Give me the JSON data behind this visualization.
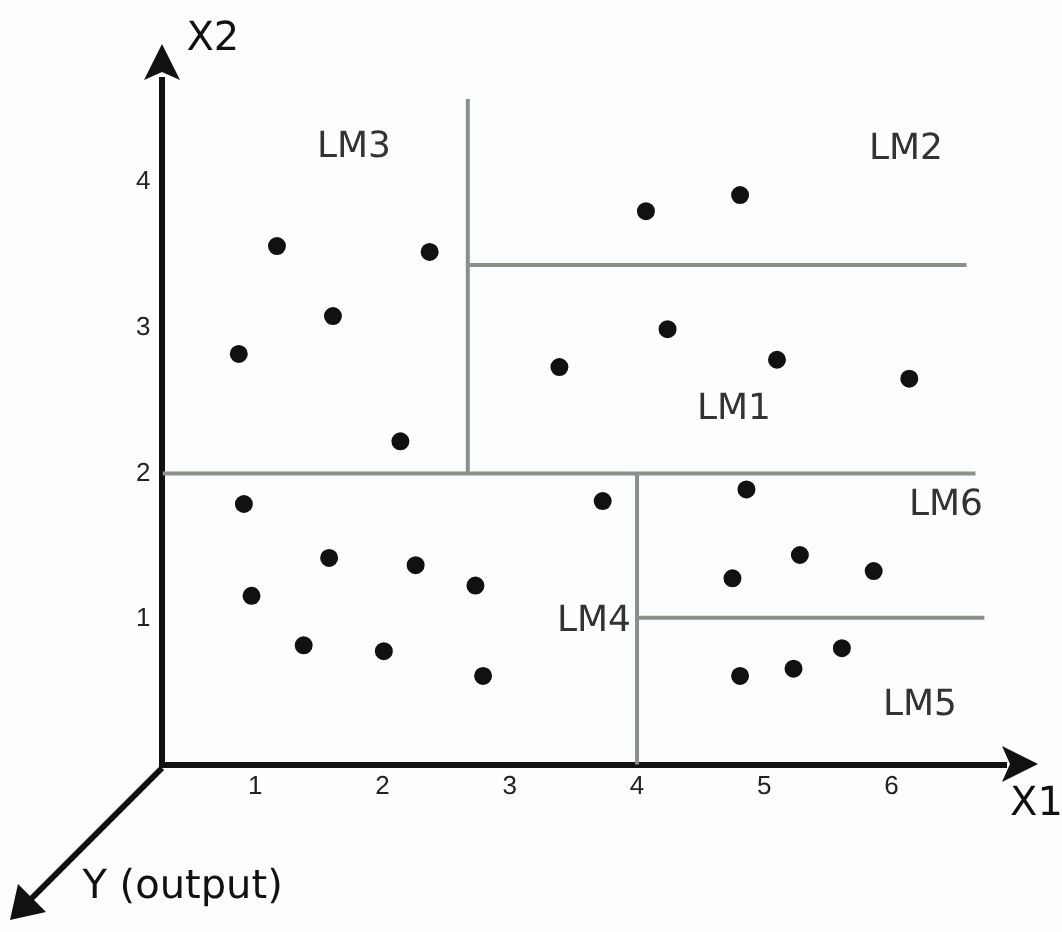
{
  "chart_data": {
    "type": "scatter",
    "xlabel": "X1",
    "ylabel": "X2",
    "xlim": [
      0.27,
      6.9
    ],
    "ylim": [
      0,
      4.7
    ],
    "xticks": [
      1,
      2,
      3,
      4,
      5,
      6
    ],
    "yticks": [
      1,
      2,
      3,
      4
    ],
    "grid": false,
    "legend": false,
    "series": [
      {
        "marker": "circle",
        "color": "#111111",
        "x": [
          1.17,
          2.37,
          1.61,
          0.87,
          2.14,
          4.07,
          4.81,
          3.39,
          4.24,
          5.1,
          6.14,
          0.91,
          3.73,
          1.58,
          2.26,
          2.73,
          0.97,
          1.38,
          2.01,
          2.79,
          4.86,
          5.28,
          4.75,
          5.86,
          4.81,
          5.23,
          5.61
        ],
        "values": [
          3.56,
          3.52,
          3.08,
          2.82,
          2.22,
          3.8,
          3.91,
          2.73,
          2.99,
          2.78,
          2.65,
          1.79,
          1.81,
          1.42,
          1.37,
          1.23,
          1.16,
          0.82,
          0.78,
          0.61,
          1.89,
          1.44,
          1.28,
          1.33,
          0.61,
          0.66,
          0.8
        ]
      },
      {
        "type": "line",
        "color": "#8a908a",
        "x": [
          0.27,
          6.66
        ],
        "values": [
          2,
          2
        ]
      },
      {
        "type": "line",
        "color": "#8a908a",
        "x": [
          2.67,
          2.67
        ],
        "values": [
          2,
          4.57
        ]
      },
      {
        "type": "line",
        "color": "#8a908a",
        "x": [
          2.67,
          6.59
        ],
        "values": [
          3.43,
          3.43
        ]
      },
      {
        "type": "line",
        "color": "#8a908a",
        "x": [
          4,
          4
        ],
        "values": [
          0,
          2
        ]
      },
      {
        "type": "line",
        "color": "#8a908a",
        "x": [
          4,
          6.73
        ],
        "values": [
          1.01,
          1.01
        ]
      }
    ],
    "annotations": [
      "LM3",
      "LM2",
      "LM1",
      "LM6",
      "LM4",
      "LM5",
      "Y (output)"
    ]
  }
}
